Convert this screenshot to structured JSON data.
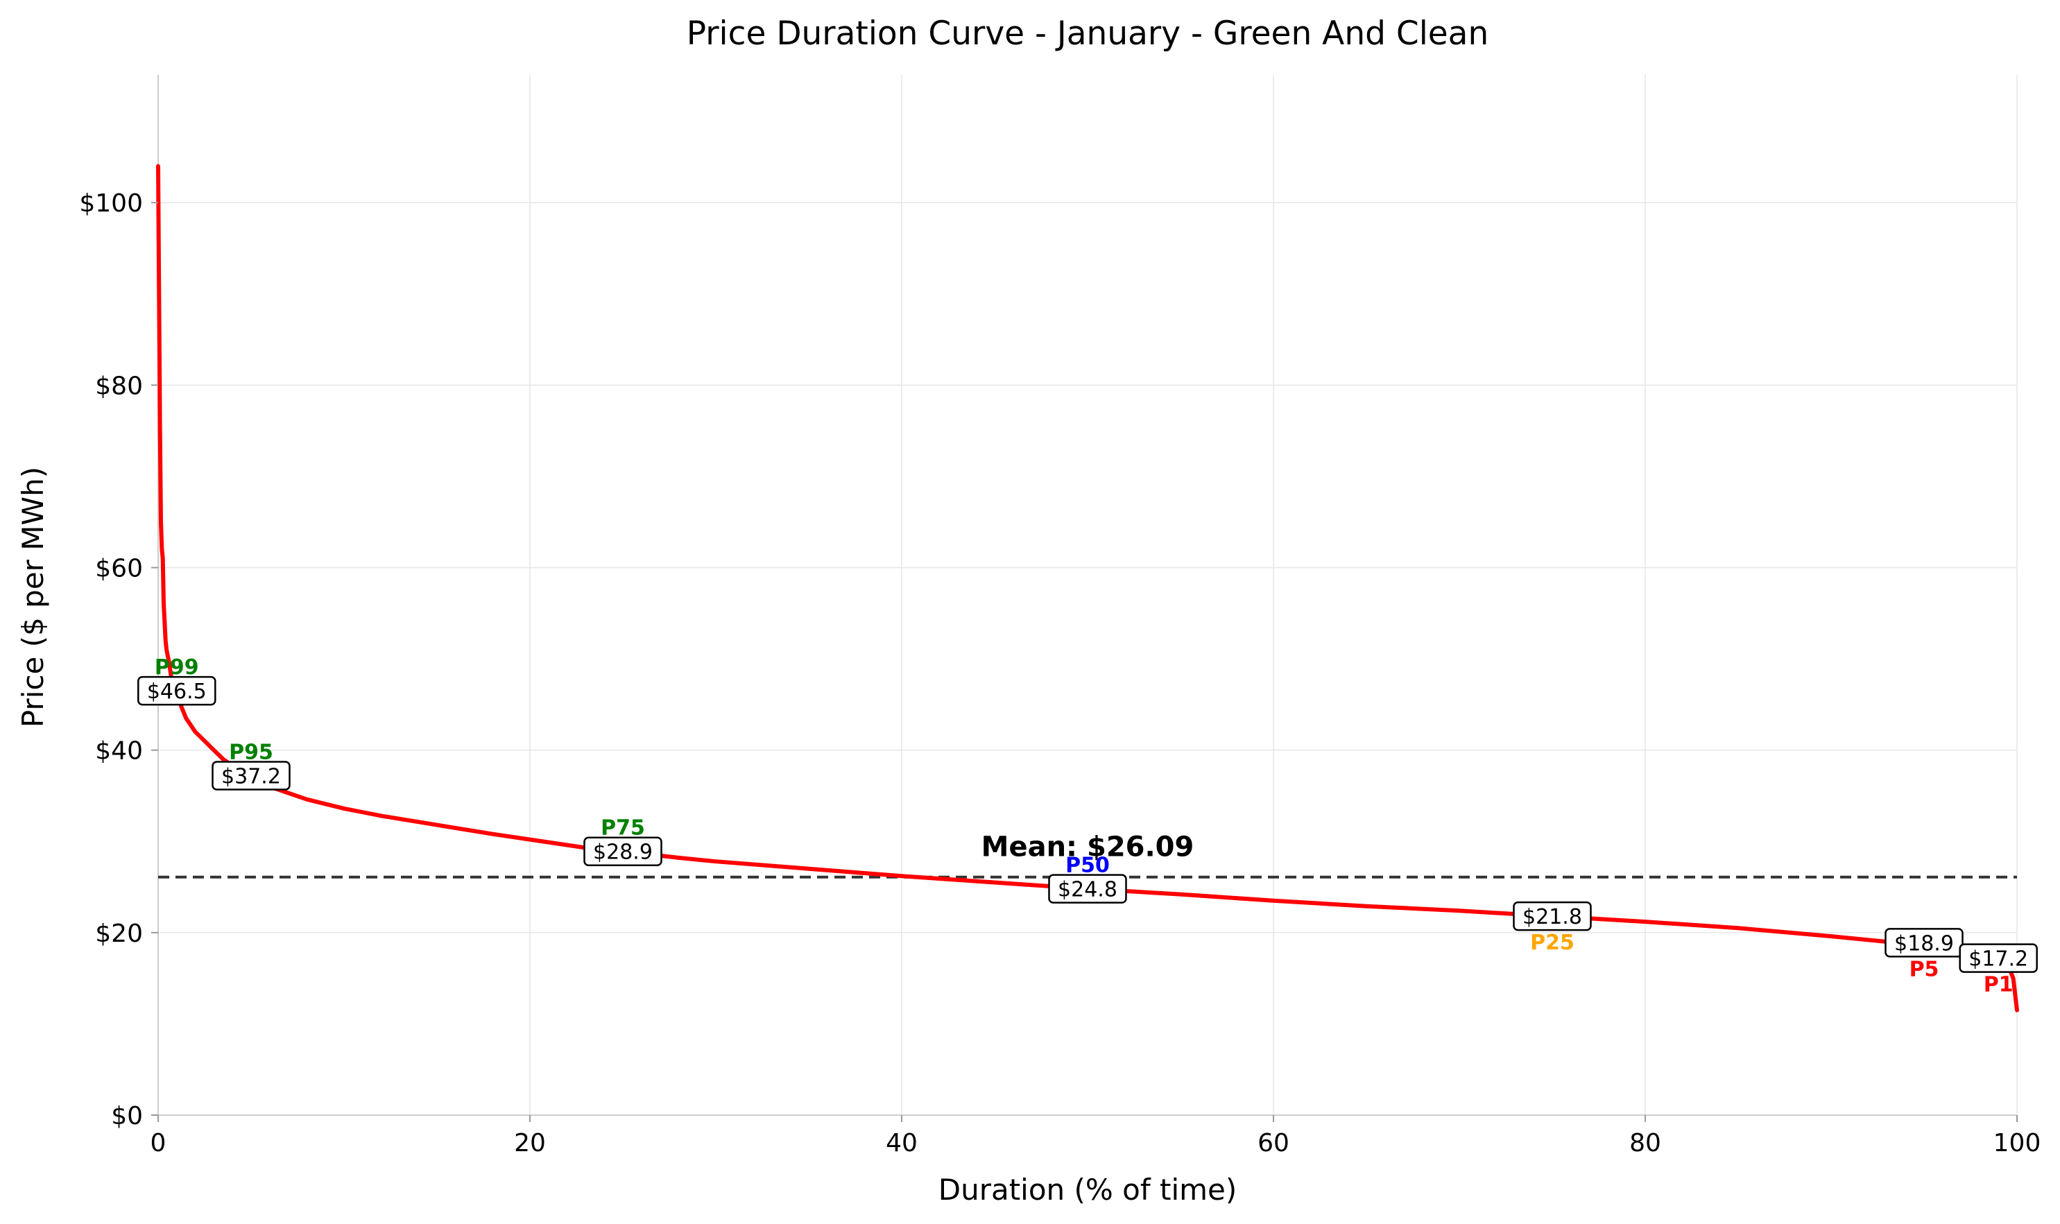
{
  "chart_data": {
    "type": "line",
    "title": "Price Duration Curve - January - Green And Clean",
    "xlabel": "Duration (% of time)",
    "ylabel": "Price ($ per MWh)",
    "xlim": [
      0,
      100
    ],
    "ylim": [
      0,
      114
    ],
    "grid": true,
    "x_ticks": [
      0,
      20,
      40,
      60,
      80,
      100
    ],
    "x_tick_labels": [
      "0",
      "20",
      "40",
      "60",
      "80",
      "100"
    ],
    "y_ticks": [
      0,
      20,
      40,
      60,
      80,
      100
    ],
    "y_tick_labels": [
      "$0",
      "$20",
      "$40",
      "$60",
      "$80",
      "$100"
    ],
    "series": [
      {
        "color": "#ff0000",
        "x": [
          0,
          0.05,
          0.1,
          0.15,
          0.2,
          0.25,
          0.3,
          0.35,
          0.4,
          0.45,
          0.5,
          0.6,
          0.7,
          0.8,
          1,
          1.2,
          1.5,
          2,
          2.5,
          3,
          3.5,
          4,
          4.5,
          5,
          6,
          7,
          8,
          10,
          12,
          15,
          18,
          20,
          23,
          25,
          28,
          30,
          35,
          40,
          45,
          50,
          55,
          60,
          65,
          70,
          75,
          80,
          85,
          90,
          93,
          95,
          97,
          98,
          99,
          99.3,
          99.6,
          99.8,
          100
        ],
        "y": [
          104,
          90,
          75,
          65,
          62,
          61,
          56,
          54,
          52,
          51,
          50.5,
          49.5,
          48,
          47,
          46.5,
          45,
          43.5,
          42,
          41,
          40,
          39,
          38.3,
          37.6,
          37.2,
          36,
          35.3,
          34.6,
          33.6,
          32.8,
          31.8,
          30.8,
          30.2,
          29.3,
          28.9,
          28.2,
          27.8,
          27,
          26.2,
          25.5,
          24.8,
          24.2,
          23.5,
          22.9,
          22.4,
          21.8,
          21.2,
          20.5,
          19.6,
          19,
          18.8,
          18.2,
          17.8,
          17.2,
          16.8,
          16,
          15,
          11.5
        ]
      }
    ],
    "mean": {
      "value": 26.09,
      "label": "Mean: $26.09",
      "color": "#333333"
    },
    "percentile_markers": [
      {
        "name": "P99",
        "x": 1,
        "value": 46.5,
        "value_label": "$46.5",
        "color": "#008000",
        "placement": "above"
      },
      {
        "name": "P95",
        "x": 5,
        "value": 37.2,
        "value_label": "$37.2",
        "color": "#008000",
        "placement": "above"
      },
      {
        "name": "P75",
        "x": 25,
        "value": 28.9,
        "value_label": "$28.9",
        "color": "#008000",
        "placement": "above"
      },
      {
        "name": "P50",
        "x": 50,
        "value": 24.8,
        "value_label": "$24.8",
        "color": "#0000ff",
        "placement": "above"
      },
      {
        "name": "P25",
        "x": 75,
        "value": 21.8,
        "value_label": "$21.8",
        "color": "#ffa500",
        "placement": "below"
      },
      {
        "name": "P5",
        "x": 95,
        "value": 18.9,
        "value_label": "$18.9",
        "color": "#ff0000",
        "placement": "below"
      },
      {
        "name": "P1",
        "x": 99,
        "value": 17.2,
        "value_label": "$17.2",
        "color": "#ff0000",
        "placement": "below"
      }
    ]
  }
}
